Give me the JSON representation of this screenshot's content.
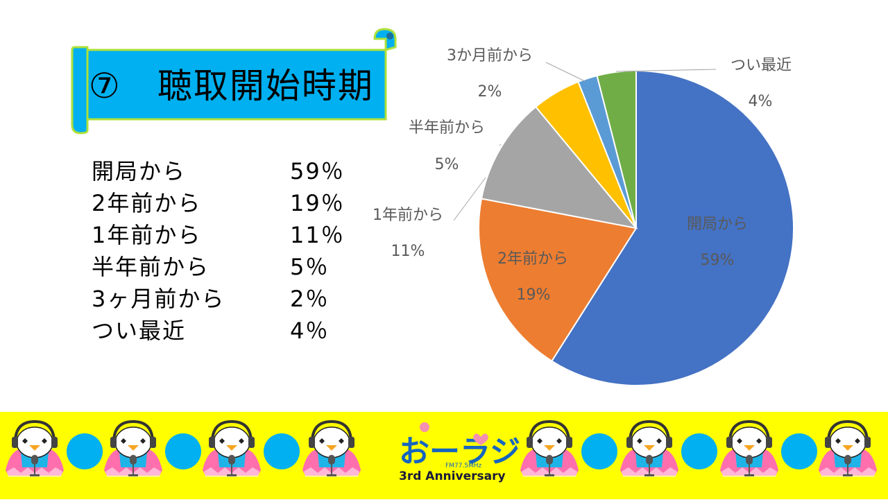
{
  "slide_title": "⑦　聴取開始時期",
  "list": [
    {
      "label": "開局から",
      "pct": "59％"
    },
    {
      "label": "2年前から",
      "pct": "19％"
    },
    {
      "label": "1年前から",
      "pct": "11％"
    },
    {
      "label": "半年前から",
      "pct": "5％"
    },
    {
      "label": "3ヶ月前から",
      "pct": "2％"
    },
    {
      "label": "つい最近",
      "pct": "4％"
    }
  ],
  "chart_data": {
    "type": "pie",
    "categories": [
      "開局から",
      "2年前から",
      "1年前から",
      "半年前から",
      "3か月前から",
      "つい最近"
    ],
    "values": [
      59,
      19,
      11,
      5,
      2,
      4
    ],
    "value_labels": [
      "59%",
      "19%",
      "11%",
      "5%",
      "2%",
      "4%"
    ],
    "colors": [
      "#4472c4",
      "#ed7d31",
      "#a5a5a5",
      "#ffc000",
      "#5b9bd5",
      "#70ad47"
    ],
    "start": "12 o'clock, clockwise",
    "legend": "none",
    "title": ""
  },
  "footer": {
    "logo_main": "おーラジ",
    "logo_freq": "FM77.5MHz",
    "logo_sub": "3rd Anniversary",
    "mascot_icon": "penguin-mascot-icon",
    "dot_icon": "blue-circle-icon",
    "colors": {
      "background": "#ffff00",
      "dot": "#00b0f0"
    }
  }
}
